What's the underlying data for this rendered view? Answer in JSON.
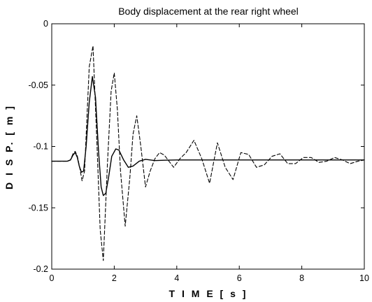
{
  "chart_data": {
    "type": "line",
    "title": "Body displacement at the rear right wheel",
    "xlabel": "T I M E   [ s ]",
    "ylabel": "D I S P.   [ m ]",
    "xlim": [
      0,
      10
    ],
    "ylim": [
      -0.2,
      0
    ],
    "x_ticks": [
      0,
      2,
      4,
      6,
      8,
      10
    ],
    "x_tick_labels": [
      "0",
      "2",
      "4",
      "6",
      "8",
      "10"
    ],
    "y_ticks": [
      0,
      -0.05,
      -0.1,
      -0.15,
      -0.2
    ],
    "y_tick_labels": [
      "0",
      "-0.05",
      "-0.1",
      "-0.15",
      "-0.2"
    ],
    "grid": false,
    "legend": "none",
    "series": [
      {
        "style": "solid",
        "color": "#000000",
        "x": [
          0,
          0.5,
          0.6,
          0.68,
          0.75,
          0.82,
          0.88,
          0.95,
          1.02,
          1.1,
          1.2,
          1.3,
          1.4,
          1.5,
          1.58,
          1.65,
          1.73,
          1.82,
          1.92,
          2.05,
          2.15,
          2.3,
          2.45,
          2.6,
          2.8,
          3.0,
          3.3,
          3.6,
          4.0,
          5.0,
          10.0
        ],
        "y": [
          -0.112,
          -0.112,
          -0.111,
          -0.107,
          -0.105,
          -0.109,
          -0.116,
          -0.121,
          -0.12,
          -0.1,
          -0.064,
          -0.043,
          -0.06,
          -0.105,
          -0.133,
          -0.14,
          -0.138,
          -0.125,
          -0.108,
          -0.102,
          -0.103,
          -0.111,
          -0.117,
          -0.116,
          -0.112,
          -0.1105,
          -0.1115,
          -0.1112,
          -0.111,
          -0.111,
          -0.111
        ]
      },
      {
        "style": "dashed",
        "color": "#000000",
        "x": [
          0,
          0.5,
          0.6,
          0.68,
          0.75,
          0.82,
          0.9,
          0.97,
          1.05,
          1.12,
          1.2,
          1.32,
          1.45,
          1.55,
          1.65,
          1.78,
          1.9,
          2.0,
          2.1,
          2.2,
          2.35,
          2.5,
          2.6,
          2.72,
          2.85,
          3.0,
          3.15,
          3.3,
          3.45,
          3.6,
          3.75,
          3.9,
          4.1,
          4.3,
          4.55,
          4.8,
          5.05,
          5.3,
          5.55,
          5.8,
          6.05,
          6.3,
          6.55,
          6.8,
          7.05,
          7.3,
          7.55,
          7.8,
          8.05,
          8.3,
          8.55,
          8.8,
          9.05,
          9.3,
          9.55,
          9.8,
          10.0
        ],
        "y": [
          -0.112,
          -0.112,
          -0.111,
          -0.106,
          -0.104,
          -0.108,
          -0.118,
          -0.128,
          -0.12,
          -0.08,
          -0.035,
          -0.018,
          -0.1,
          -0.168,
          -0.193,
          -0.115,
          -0.055,
          -0.04,
          -0.07,
          -0.12,
          -0.165,
          -0.125,
          -0.09,
          -0.075,
          -0.1,
          -0.133,
          -0.12,
          -0.11,
          -0.105,
          -0.107,
          -0.112,
          -0.117,
          -0.11,
          -0.105,
          -0.095,
          -0.11,
          -0.13,
          -0.097,
          -0.117,
          -0.127,
          -0.105,
          -0.1065,
          -0.117,
          -0.115,
          -0.108,
          -0.106,
          -0.114,
          -0.114,
          -0.109,
          -0.109,
          -0.113,
          -0.112,
          -0.109,
          -0.111,
          -0.114,
          -0.112,
          -0.111
        ]
      }
    ]
  }
}
